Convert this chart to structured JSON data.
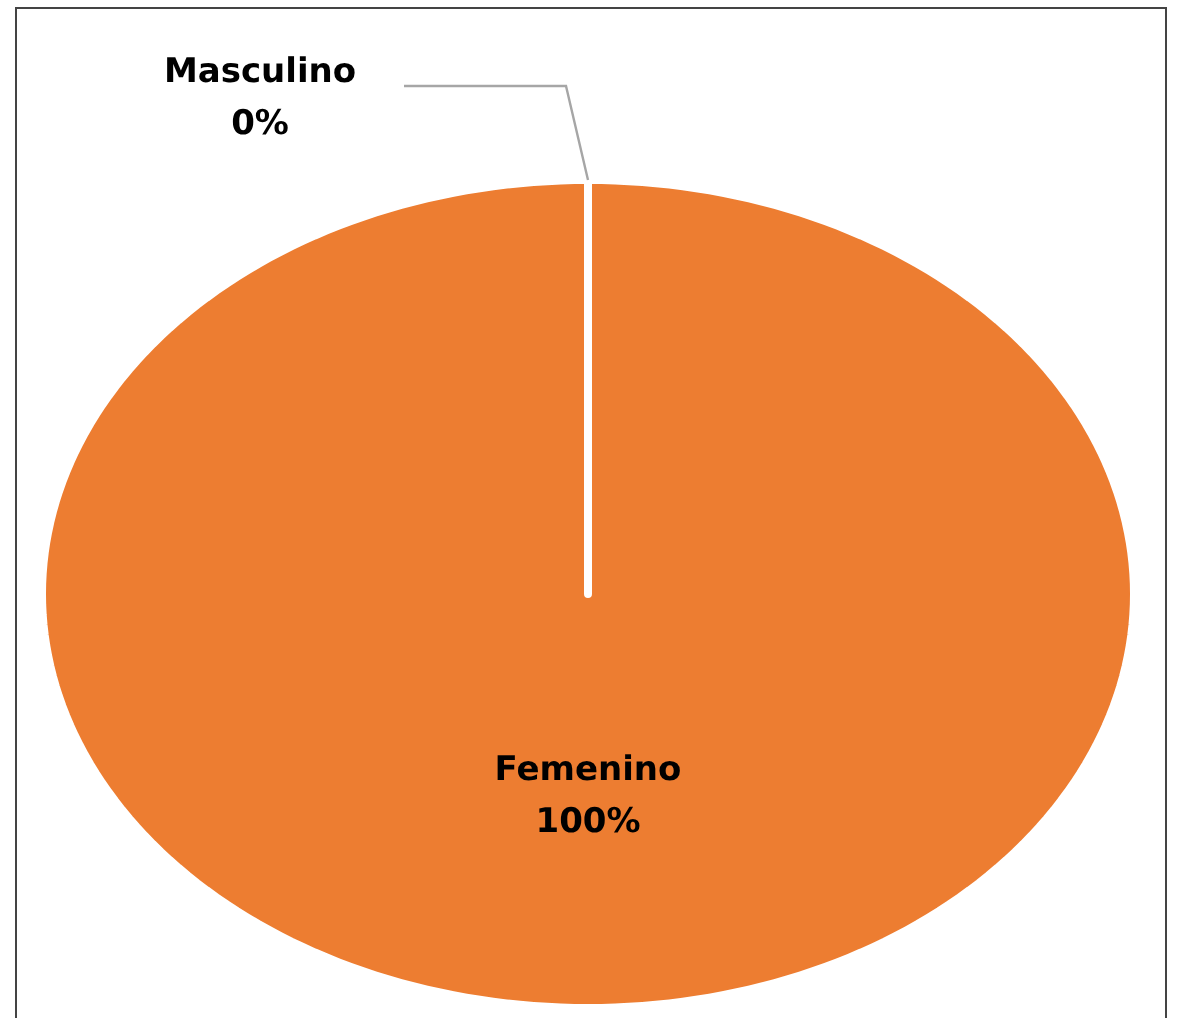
{
  "chart_data": {
    "type": "pie",
    "categories": [
      "Masculino",
      "Femenino"
    ],
    "values": [
      0,
      100
    ],
    "colors": [
      "#4472c4",
      "#ed7d31"
    ],
    "value_labels": [
      "0%",
      "100%"
    ]
  }
}
